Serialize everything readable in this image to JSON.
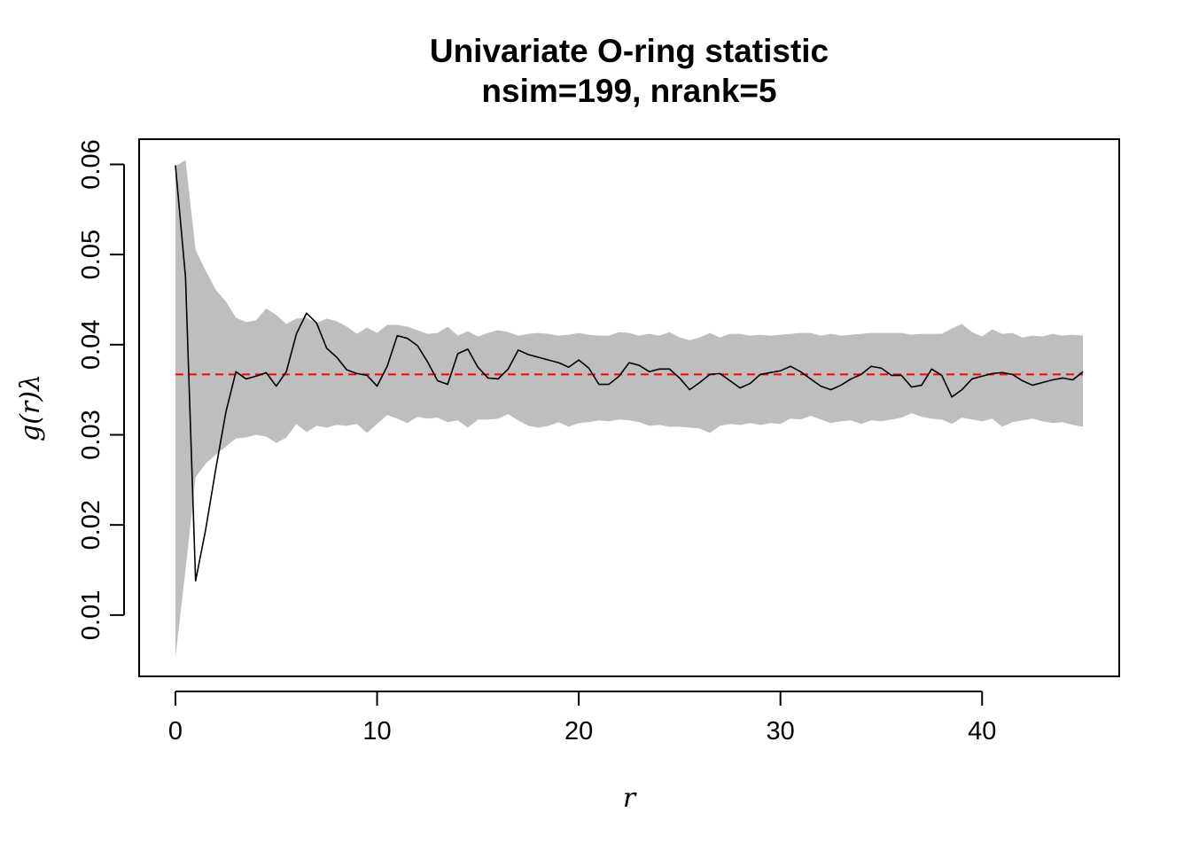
{
  "chart_data": {
    "type": "line",
    "title": "Univariate O-ring statistic",
    "subtitle": "nsim=199, nrank=5",
    "xlabel": "r",
    "ylabel": "g(r)λ",
    "xlim": [
      -1.8,
      46.8
    ],
    "ylim": [
      0.0032,
      0.0628
    ],
    "x_ticks": [
      0,
      10,
      20,
      30,
      40
    ],
    "x_tick_labels": [
      "0",
      "10",
      "20",
      "30",
      "40"
    ],
    "y_ticks": [
      0.01,
      0.02,
      0.03,
      0.04,
      0.05,
      0.06
    ],
    "y_tick_labels": [
      "0.01",
      "0.02",
      "0.03",
      "0.04",
      "0.05",
      "0.06"
    ],
    "grid": false,
    "legend": "none",
    "colors": {
      "observed": "#000000",
      "theoretical": "#ff0000",
      "envelope": "#bebebe"
    },
    "series": [
      {
        "role": "observed",
        "style": "solid line",
        "x": [
          0,
          0.5,
          1,
          1.5,
          2,
          2.5,
          3,
          3.5,
          4,
          4.5,
          5,
          5.5,
          6,
          6.5,
          7,
          7.5,
          8,
          8.5,
          9,
          9.5,
          10,
          10.5,
          11,
          11.5,
          12,
          12.5,
          13,
          13.5,
          14,
          14.5,
          15,
          15.5,
          16,
          16.5,
          17,
          17.5,
          18,
          18.5,
          19,
          19.5,
          20,
          20.5,
          21,
          21.5,
          22,
          22.5,
          23,
          23.5,
          24,
          24.5,
          25,
          25.5,
          26,
          26.5,
          27,
          27.5,
          28,
          28.5,
          29,
          29.5,
          30,
          30.5,
          31,
          31.5,
          32,
          32.5,
          33,
          33.5,
          34,
          34.5,
          35,
          35.5,
          36,
          36.5,
          37,
          37.5,
          38,
          38.5,
          39,
          39.5,
          40,
          40.5,
          41,
          41.5,
          42,
          42.5,
          43,
          43.5,
          44,
          44.5,
          45
        ],
        "y": [
          0.0599,
          0.0475,
          0.0138,
          0.0195,
          0.0262,
          0.0325,
          0.037,
          0.0362,
          0.0365,
          0.0369,
          0.0354,
          0.037,
          0.0412,
          0.0435,
          0.0424,
          0.0396,
          0.0386,
          0.0372,
          0.0368,
          0.0366,
          0.0354,
          0.0376,
          0.041,
          0.0407,
          0.0399,
          0.0381,
          0.036,
          0.0356,
          0.039,
          0.0395,
          0.0375,
          0.0363,
          0.0362,
          0.0373,
          0.0394,
          0.0389,
          0.0386,
          0.0383,
          0.038,
          0.0375,
          0.0383,
          0.0374,
          0.0356,
          0.0356,
          0.0365,
          0.038,
          0.0377,
          0.037,
          0.0373,
          0.0373,
          0.0363,
          0.035,
          0.0358,
          0.0367,
          0.0368,
          0.036,
          0.0352,
          0.0357,
          0.0367,
          0.0369,
          0.0371,
          0.0376,
          0.037,
          0.0362,
          0.0354,
          0.035,
          0.0355,
          0.0362,
          0.0367,
          0.0376,
          0.0374,
          0.0366,
          0.0366,
          0.0353,
          0.0355,
          0.0373,
          0.0366,
          0.0342,
          0.035,
          0.0362,
          0.0365,
          0.0368,
          0.0369,
          0.0367,
          0.036,
          0.0355,
          0.0358,
          0.0361,
          0.0363,
          0.0361,
          0.037
        ]
      },
      {
        "role": "theoretical",
        "style": "dashed line",
        "x": [
          0,
          45
        ],
        "y": [
          0.0367,
          0.0367
        ]
      }
    ],
    "envelope": {
      "x": [
        0,
        0.5,
        1,
        1.5,
        2,
        2.5,
        3,
        3.5,
        4,
        4.5,
        5,
        5.5,
        6,
        6.5,
        7,
        7.5,
        8,
        8.5,
        9,
        9.5,
        10,
        10.5,
        11,
        11.5,
        12,
        12.5,
        13,
        13.5,
        14,
        14.5,
        15,
        15.5,
        16,
        16.5,
        17,
        17.5,
        18,
        18.5,
        19,
        19.5,
        20,
        20.5,
        21,
        21.5,
        22,
        22.5,
        23,
        23.5,
        24,
        24.5,
        25,
        25.5,
        26,
        26.5,
        27,
        27.5,
        28,
        28.5,
        29,
        29.5,
        30,
        30.5,
        31,
        31.5,
        32,
        32.5,
        33,
        33.5,
        34,
        34.5,
        35,
        35.5,
        36,
        36.5,
        37,
        37.5,
        38,
        38.5,
        39,
        39.5,
        40,
        40.5,
        41,
        41.5,
        42,
        42.5,
        43,
        43.5,
        44,
        44.5,
        45
      ],
      "lower": [
        0.0053,
        0.015,
        0.0253,
        0.0268,
        0.0278,
        0.0287,
        0.0296,
        0.0297,
        0.03,
        0.0298,
        0.0291,
        0.0297,
        0.0312,
        0.0303,
        0.031,
        0.0308,
        0.0311,
        0.031,
        0.0312,
        0.0302,
        0.0312,
        0.0322,
        0.0318,
        0.0313,
        0.032,
        0.0318,
        0.0319,
        0.0314,
        0.0316,
        0.0308,
        0.0317,
        0.0317,
        0.0318,
        0.0323,
        0.0316,
        0.031,
        0.0308,
        0.031,
        0.0314,
        0.0309,
        0.0313,
        0.0314,
        0.0316,
        0.0315,
        0.0317,
        0.0316,
        0.0314,
        0.031,
        0.0311,
        0.0309,
        0.0309,
        0.0308,
        0.0307,
        0.0302,
        0.031,
        0.0312,
        0.0311,
        0.0313,
        0.0311,
        0.0313,
        0.0312,
        0.0318,
        0.0317,
        0.0321,
        0.0317,
        0.0313,
        0.0315,
        0.0316,
        0.0312,
        0.0316,
        0.0315,
        0.0317,
        0.0319,
        0.0324,
        0.032,
        0.0318,
        0.0317,
        0.0312,
        0.0319,
        0.0317,
        0.0315,
        0.0318,
        0.0309,
        0.0314,
        0.0316,
        0.0318,
        0.0315,
        0.0313,
        0.0314,
        0.0311,
        0.0309
      ],
      "upper": [
        0.0598,
        0.0605,
        0.0505,
        0.0482,
        0.0461,
        0.0448,
        0.043,
        0.0425,
        0.0427,
        0.044,
        0.0433,
        0.0423,
        0.0429,
        0.043,
        0.0424,
        0.0429,
        0.0426,
        0.042,
        0.0412,
        0.0419,
        0.0413,
        0.0422,
        0.0422,
        0.042,
        0.0416,
        0.0412,
        0.0413,
        0.042,
        0.041,
        0.0415,
        0.0409,
        0.0413,
        0.0416,
        0.0414,
        0.041,
        0.0412,
        0.0413,
        0.0412,
        0.041,
        0.0411,
        0.0413,
        0.0411,
        0.041,
        0.041,
        0.0414,
        0.0413,
        0.041,
        0.0412,
        0.041,
        0.0414,
        0.0408,
        0.0405,
        0.0408,
        0.0413,
        0.0408,
        0.0412,
        0.0412,
        0.041,
        0.0411,
        0.041,
        0.0411,
        0.0412,
        0.0413,
        0.0413,
        0.041,
        0.0412,
        0.041,
        0.0411,
        0.0412,
        0.0413,
        0.0413,
        0.0413,
        0.0413,
        0.0411,
        0.0412,
        0.0412,
        0.0412,
        0.0418,
        0.0423,
        0.0414,
        0.0409,
        0.0417,
        0.0412,
        0.0413,
        0.0408,
        0.041,
        0.0409,
        0.0412,
        0.041,
        0.0411,
        0.041
      ]
    }
  }
}
